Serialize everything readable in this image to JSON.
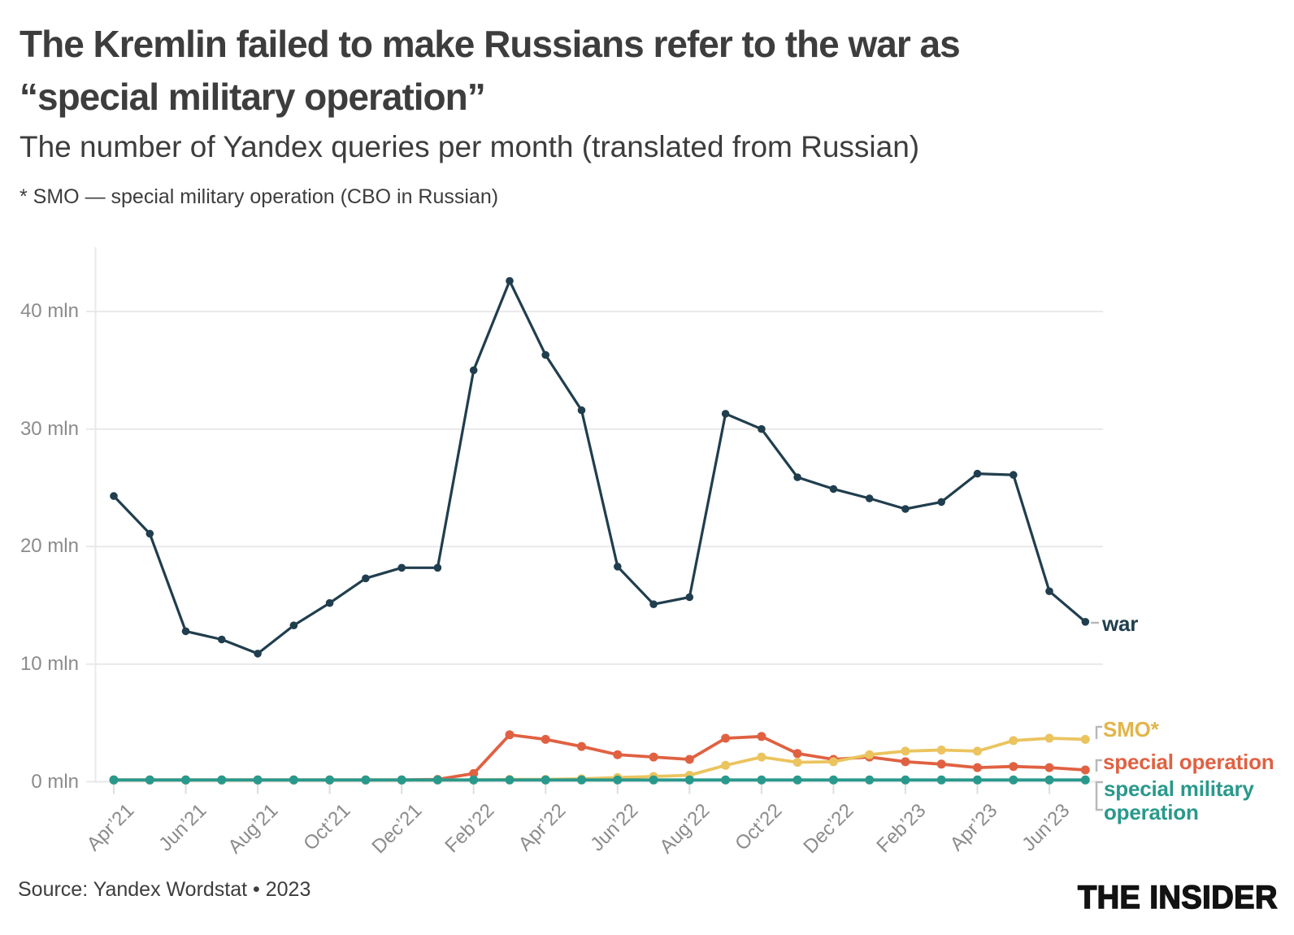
{
  "header": {
    "title_line1": "The Kremlin failed to make Russians refer to the war as",
    "title_line2": "“special military operation”",
    "subtitle": "The number of Yandex queries per month (translated from Russian)",
    "footnote": "* SMO — special military operation (CBO in Russian)"
  },
  "footer": {
    "source": "Source: Yandex Wordstat • 2023",
    "logo": "THE INSIDER"
  },
  "chart_data": {
    "type": "line",
    "title": "The Kremlin failed to make Russians refer to the war as “special military operation”",
    "subtitle": "The number of Yandex queries per month (translated from Russian)",
    "unit": "mln Yandex queries per month",
    "x": [
      "Apr’21",
      "May’21",
      "Jun’21",
      "Jul’21",
      "Aug’21",
      "Sep’21",
      "Oct’21",
      "Nov’21",
      "Dec’21",
      "Jan’22",
      "Feb’22",
      "Mar’22",
      "Apr’22",
      "May’22",
      "Jun’22",
      "Jul’22",
      "Aug’22",
      "Sep’22",
      "Oct’22",
      "Nov’22",
      "Dec’22",
      "Jan’23",
      "Feb’23",
      "Mar’23",
      "Apr’23",
      "May’23",
      "Jun’23",
      "Jul’23"
    ],
    "x_tick_labels": [
      "Apr’21",
      "Jun’21",
      "Aug’21",
      "Oct’21",
      "Dec’21",
      "Feb’22",
      "Apr’22",
      "Jun’22",
      "Aug’22",
      "Oct’22",
      "Dec’22",
      "Feb’23",
      "Apr’23",
      "Jun’23"
    ],
    "y_ticks": [
      "0 mln",
      "10 mln",
      "20 mln",
      "30 mln",
      "40 mln"
    ],
    "y_tick_values": [
      0,
      10,
      20,
      30,
      40
    ],
    "ylim": [
      0,
      45
    ],
    "grid": "horizontal-only",
    "legend_position": "right-end-labels",
    "series": [
      {
        "name": "war",
        "color": "#203e4e",
        "values": [
          24.3,
          21.1,
          12.8,
          12.1,
          10.9,
          13.3,
          15.2,
          17.3,
          18.2,
          18.2,
          35.0,
          42.6,
          36.3,
          31.6,
          18.3,
          15.1,
          15.7,
          31.3,
          30.0,
          25.9,
          24.9,
          24.1,
          23.2,
          23.8,
          26.2,
          26.1,
          16.2,
          13.6
        ]
      },
      {
        "name": "special operation",
        "color": "#e06142",
        "values": [
          0.15,
          0.15,
          0.15,
          0.15,
          0.15,
          0.15,
          0.15,
          0.15,
          0.15,
          0.2,
          0.7,
          4.0,
          3.6,
          3.0,
          2.3,
          2.1,
          1.9,
          3.7,
          3.85,
          2.4,
          1.9,
          2.1,
          1.7,
          1.5,
          1.2,
          1.3,
          1.2,
          1.0
        ]
      },
      {
        "name": "SMO*",
        "color": "#ebc45f",
        "values": [
          0.15,
          0.15,
          0.15,
          0.15,
          0.15,
          0.15,
          0.15,
          0.15,
          0.15,
          0.15,
          0.15,
          0.2,
          0.2,
          0.25,
          0.35,
          0.45,
          0.55,
          1.4,
          2.1,
          1.65,
          1.7,
          2.3,
          2.6,
          2.7,
          2.6,
          3.5,
          3.7,
          3.6
        ]
      },
      {
        "name": "special military operation",
        "color": "#29998c",
        "values": [
          0.15,
          0.15,
          0.15,
          0.15,
          0.15,
          0.15,
          0.15,
          0.15,
          0.15,
          0.15,
          0.15,
          0.15,
          0.15,
          0.15,
          0.15,
          0.15,
          0.15,
          0.15,
          0.15,
          0.15,
          0.15,
          0.15,
          0.15,
          0.15,
          0.15,
          0.15,
          0.15,
          0.15
        ]
      }
    ]
  }
}
